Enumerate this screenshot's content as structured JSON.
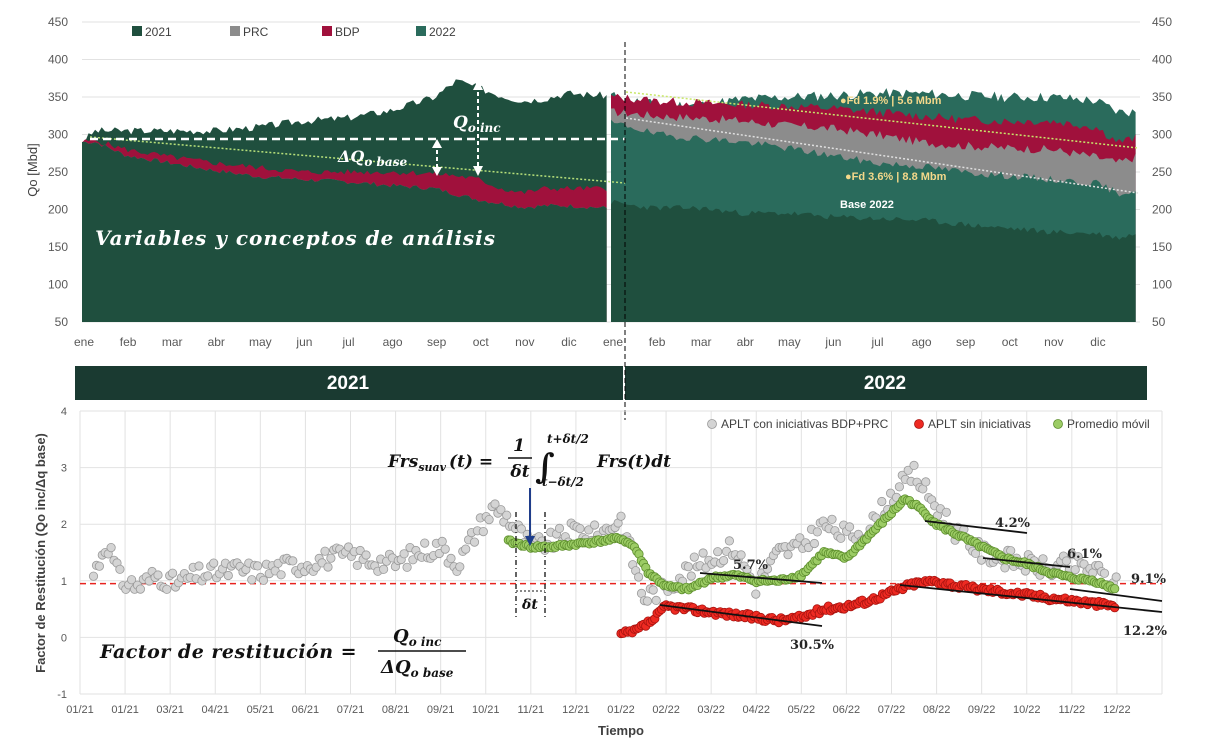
{
  "chart_data": [
    {
      "type": "area",
      "ylabel": "Qo [Mbd]",
      "ylim": [
        50,
        450
      ],
      "yticks": [
        "50",
        "100",
        "150",
        "200",
        "250",
        "300",
        "350",
        "400",
        "450"
      ],
      "months": [
        "ene",
        "feb",
        "mar",
        "abr",
        "may",
        "jun",
        "jul",
        "ago",
        "sep",
        "oct",
        "nov",
        "dic",
        "ene",
        "feb",
        "mar",
        "abr",
        "may",
        "jun",
        "jul",
        "ago",
        "sep",
        "oct",
        "nov",
        "dic"
      ],
      "legend": [
        {
          "label": "2021",
          "color": "#1f4f3e"
        },
        {
          "label": "PRC",
          "color": "#8c8c8c"
        },
        {
          "label": "BDP",
          "color": "#a0113c"
        },
        {
          "label": "2022",
          "color": "#2a6b5c"
        }
      ],
      "series_2021": {
        "x": [
          0,
          0.3,
          1,
          2,
          3,
          4,
          5,
          6,
          7,
          8,
          8.5,
          9,
          9.5,
          10,
          10.5,
          11,
          11.9
        ],
        "total": [
          290,
          305,
          305,
          305,
          305,
          310,
          318,
          322,
          332,
          350,
          372,
          362,
          352,
          345,
          348,
          355,
          352
        ],
        "base": [
          290,
          290,
          272,
          262,
          252,
          244,
          240,
          237,
          232,
          228,
          220,
          213,
          208,
          203,
          205,
          205,
          202
        ],
        "prc": [
          290,
          290,
          272,
          262,
          252,
          244,
          240,
          237,
          232,
          228,
          220,
          213,
          208,
          203,
          205,
          205,
          202
        ],
        "bdp": [
          290,
          292,
          280,
          270,
          262,
          256,
          250,
          250,
          250,
          248,
          245,
          240,
          228,
          222,
          228,
          228,
          228
        ]
      },
      "series_2022": {
        "x": [
          12,
          12.5,
          13,
          14,
          15,
          16,
          17,
          18,
          19,
          20,
          21,
          22,
          23,
          23.5,
          23.9
        ],
        "total": [
          352,
          345,
          340,
          340,
          347,
          350,
          352,
          355,
          355,
          352,
          350,
          350,
          345,
          330,
          330
        ],
        "inner": [
          210,
          205,
          202,
          202,
          195,
          195,
          190,
          188,
          186,
          180,
          175,
          170,
          168,
          162,
          168
        ],
        "prc": [
          315,
          310,
          300,
          295,
          290,
          282,
          272,
          262,
          258,
          250,
          245,
          240,
          235,
          222,
          225
        ],
        "bdp": [
          330,
          328,
          325,
          322,
          318,
          312,
          308,
          300,
          290,
          285,
          282,
          280,
          270,
          262,
          270
        ],
        "bdp_top": [
          350,
          348,
          345,
          342,
          340,
          338,
          335,
          330,
          325,
          320,
          318,
          318,
          310,
          290,
          295
        ]
      },
      "annotations": {
        "q_inc": "Q",
        "q_inc_sub": "o inc",
        "dq_base": "ΔQ",
        "dq_base_sub": "o base",
        "fd1": "●Fd 1.9% | 5.6 Mbm",
        "fd2": "●Fd 3.6% | 8.8 Mbm",
        "base2022": "Base 2022",
        "concept": "Variables y conceptos de análisis"
      }
    },
    {
      "type": "scatter",
      "xlabel": "Tiempo",
      "ylabel": "Factor de Restitución (Qo inc/Δq base)",
      "ylim": [
        -1,
        4
      ],
      "yticks": [
        "-1",
        "0",
        "1",
        "2",
        "3",
        "4"
      ],
      "xticks": [
        "01/21",
        "01/21",
        "03/21",
        "04/21",
        "05/21",
        "06/21",
        "07/21",
        "08/21",
        "09/21",
        "10/21",
        "11/21",
        "12/21",
        "01/22",
        "02/22",
        "03/22",
        "04/22",
        "05/22",
        "06/22",
        "07/22",
        "08/22",
        "09/22",
        "10/22",
        "11/22",
        "12/22"
      ],
      "legend": [
        {
          "label": "APLT con iniciativas BDP+PRC",
          "color": "#cfcfcf"
        },
        {
          "label": "APLT sin iniciativas",
          "color": "#e8231f"
        },
        {
          "label": "Promedio móvil",
          "color": "#8cc34a"
        }
      ],
      "reference_line": 0.95,
      "series": [
        {
          "name": "APLT con iniciativas BDP+PRC",
          "x": [
            0.3,
            0.6,
            0.9,
            1.3,
            1.7,
            2.1,
            2.6,
            3.0,
            3.5,
            4.0,
            4.5,
            5.0,
            5.5,
            6.0,
            6.5,
            7.0,
            7.5,
            8.0,
            8.4,
            8.8,
            9.2,
            9.5,
            10.0,
            10.5,
            11.0,
            11.5,
            12.0,
            12.5,
            13.0,
            13.5,
            14.0,
            14.5,
            15.0,
            15.5,
            16.0,
            16.5,
            17.0,
            17.5,
            18.0,
            18.5,
            19.0,
            19.5,
            20.0,
            20.5,
            21.0,
            21.5,
            22.0,
            22.5,
            23.0
          ],
          "y": [
            1.1,
            1.7,
            1.0,
            0.9,
            1.1,
            0.95,
            1.1,
            1.15,
            1.2,
            1.15,
            1.25,
            1.3,
            1.4,
            1.45,
            1.35,
            1.3,
            1.5,
            1.6,
            1.3,
            1.9,
            2.3,
            2.1,
            1.6,
            1.7,
            1.9,
            1.8,
            2.1,
            0.7,
            0.9,
            1.2,
            1.4,
            1.6,
            0.9,
            1.5,
            1.6,
            2.0,
            1.8,
            1.9,
            2.5,
            2.9,
            2.3,
            1.8,
            1.5,
            1.4,
            1.3,
            1.2,
            1.3,
            1.2,
            0.9
          ]
        },
        {
          "name": "APLT sin iniciativas",
          "x": [
            12.0,
            12.3,
            12.7,
            13.0,
            13.5,
            14.0,
            14.5,
            15.0,
            15.5,
            16.0,
            16.5,
            17.0,
            17.5,
            18.0,
            18.5,
            19.0,
            19.5,
            20.0,
            20.5,
            21.0,
            21.5,
            22.0,
            22.5,
            23.0
          ],
          "y": [
            0.05,
            0.1,
            0.3,
            0.55,
            0.5,
            0.45,
            0.4,
            0.35,
            0.3,
            0.35,
            0.5,
            0.55,
            0.65,
            0.8,
            0.95,
            1.0,
            0.9,
            0.85,
            0.8,
            0.75,
            0.7,
            0.65,
            0.6,
            0.55
          ]
        },
        {
          "name": "Promedio móvil",
          "x": [
            9.5,
            10.0,
            10.5,
            11.0,
            11.5,
            12.0,
            12.3,
            12.6,
            13.0,
            13.5,
            14.0,
            14.5,
            15.0,
            15.5,
            16.0,
            16.5,
            17.0,
            17.5,
            18.0,
            18.3,
            18.6,
            19.0,
            19.5,
            20.0,
            20.5,
            21.0,
            21.5,
            22.0,
            22.5,
            23.0
          ],
          "y": [
            1.7,
            1.6,
            1.6,
            1.65,
            1.7,
            1.75,
            1.6,
            1.15,
            0.9,
            0.85,
            1.05,
            1.1,
            1.0,
            1.0,
            1.1,
            1.5,
            1.4,
            1.8,
            2.2,
            2.45,
            2.3,
            2.0,
            1.8,
            1.6,
            1.4,
            1.3,
            1.15,
            1.05,
            1.0,
            0.85
          ]
        }
      ],
      "trend_labels": [
        "4.2%",
        "6.1%",
        "9.1%",
        "5.7%",
        "30.5%",
        "12.2%"
      ],
      "formula_frs": "Frs",
      "formula_frs_sub": "suav",
      "formula_frs_rest": "(t) =",
      "formula_frs_int": "Frs(t)dt",
      "formula_upper": "t+δt/2",
      "formula_lower": "t−δt/2",
      "formula_one": "1",
      "formula_dt": "δt",
      "delta_t": "δt",
      "factor_label": "Factor de restitución =",
      "factor_num": "Q",
      "factor_num_sub": "o inc",
      "factor_den": "ΔQ",
      "factor_den_sub": "o base"
    }
  ],
  "year_band": {
    "left": "2021",
    "right": "2022"
  }
}
